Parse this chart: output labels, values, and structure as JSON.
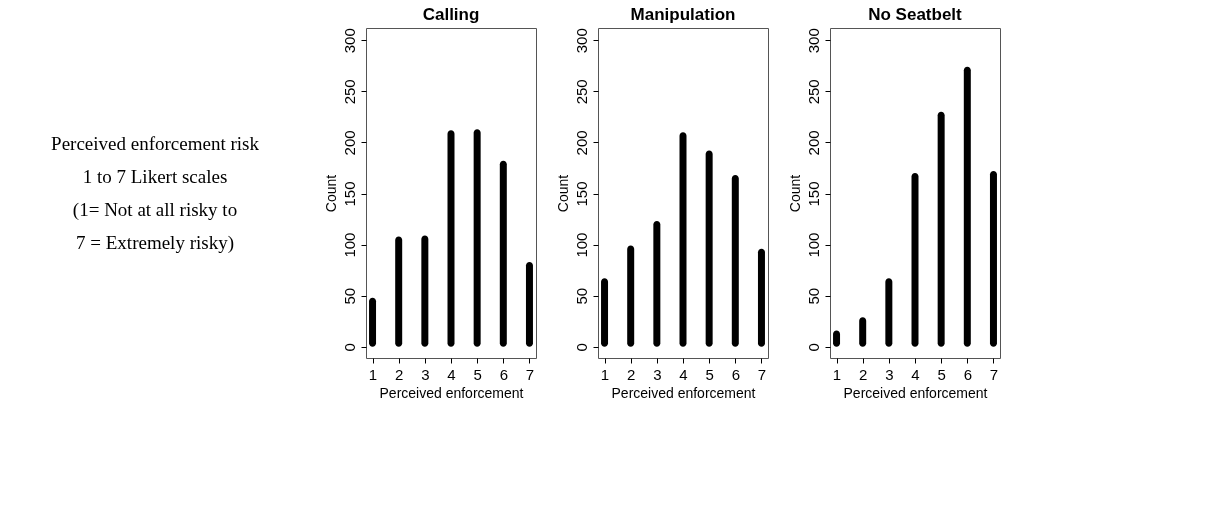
{
  "chart_data": [
    {
      "type": "other",
      "annotations": [
        "Perceived enforcement risk",
        "1 to 7 Likert scales",
        "(1= Not at all risky to",
        "7 = Extremely risky)"
      ]
    },
    {
      "type": "bar",
      "title": "Calling",
      "xlabel": "Perceived enforcement",
      "ylabel": "Count",
      "x": [
        1,
        2,
        3,
        4,
        5,
        6,
        7
      ],
      "values": [
        48,
        108,
        109,
        212,
        213,
        182,
        83
      ],
      "color": "#000000",
      "xlim": [
        0.75,
        7.25
      ],
      "xticks": [
        1,
        2,
        3,
        4,
        5,
        6,
        7
      ],
      "ylim": [
        -11,
        312
      ],
      "yticks": [
        0,
        50,
        100,
        150,
        200,
        250,
        300
      ],
      "grid": false
    },
    {
      "type": "bar",
      "title": "Manipulation",
      "xlabel": "Perceived enforcement",
      "ylabel": "Count",
      "x": [
        1,
        2,
        3,
        4,
        5,
        6,
        7
      ],
      "values": [
        67,
        99,
        123,
        210,
        192,
        168,
        96
      ],
      "color": "#000000",
      "xlim": [
        0.75,
        7.25
      ],
      "xticks": [
        1,
        2,
        3,
        4,
        5,
        6,
        7
      ],
      "ylim": [
        -11,
        312
      ],
      "yticks": [
        0,
        50,
        100,
        150,
        200,
        250,
        300
      ],
      "grid": false
    },
    {
      "type": "bar",
      "title": "No Seatbelt",
      "xlabel": "Perceived enforcement",
      "ylabel": "Count",
      "x": [
        1,
        2,
        3,
        4,
        5,
        6,
        7
      ],
      "values": [
        16,
        29,
        67,
        170,
        230,
        274,
        172
      ],
      "color": "#000000",
      "xlim": [
        0.75,
        7.25
      ],
      "xticks": [
        1,
        2,
        3,
        4,
        5,
        6,
        7
      ],
      "ylim": [
        -11,
        312
      ],
      "yticks": [
        0,
        50,
        100,
        150,
        200,
        250,
        300
      ],
      "grid": false
    }
  ]
}
